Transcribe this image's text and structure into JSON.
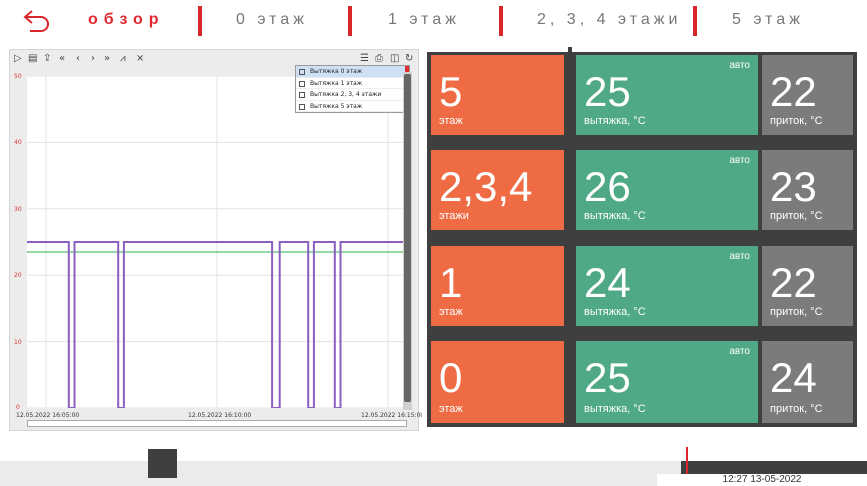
{
  "header": {
    "tabs": [
      {
        "label": "обзор",
        "active": true
      },
      {
        "label": "0 этаж"
      },
      {
        "label": "1 этаж"
      },
      {
        "label": "2, 3, 4 этажи"
      },
      {
        "label": "5 этаж"
      }
    ]
  },
  "chart_toolbar": {
    "icons": [
      "play-icon",
      "table-icon",
      "export-icon",
      "rewind-icon",
      "prev-icon",
      "next-icon",
      "fast-forward-icon",
      "chart-icon",
      "clear-chart-icon",
      "list-icon",
      "print-icon",
      "screenshot-icon",
      "refresh-icon"
    ],
    "glyphs": [
      "▷",
      "▤",
      "⇪",
      "«",
      "‹",
      "›",
      "»",
      "⩘",
      "⨯",
      "☰",
      "⎙",
      "◫",
      "↻"
    ]
  },
  "chart_data": {
    "type": "line",
    "ylim": [
      0,
      50
    ],
    "yticks": [
      "50",
      "40",
      "30",
      "20",
      "10",
      "0"
    ],
    "xticks": [
      "12.05.2022 16:05:00",
      "12.05.2022 16:10:00",
      "12.05.2022 16:15:00"
    ],
    "series": [
      {
        "name": "Вытяжка 0 этаж",
        "color": "#e03030",
        "checked": true
      },
      {
        "name": "Вытяжка 1 этаж",
        "color": "#29b34a",
        "checked": true
      },
      {
        "name": "Вытяжка 2, 3, 4 этажи",
        "color": "#1f3fc8",
        "checked": true
      },
      {
        "name": "Вытяжка 5 этаж",
        "color": "#22d8e0",
        "checked": true
      }
    ],
    "main_value": 25,
    "green_value": 23.5,
    "gaps_t": [
      [
        0.11,
        0.125
      ],
      [
        0.24,
        0.255
      ],
      [
        0.645,
        0.665
      ],
      [
        0.74,
        0.755
      ],
      [
        0.81,
        0.825
      ]
    ]
  },
  "grid": {
    "auto_label": "авто",
    "rows": [
      {
        "zone": "5",
        "zone_caption": "этаж",
        "exhaust": "25",
        "exhaust_caption": "вытяжка, °C",
        "supply": "22",
        "supply_caption": "приток, °C"
      },
      {
        "zone": "2,3,4",
        "zone_caption": "этажи",
        "exhaust": "26",
        "exhaust_caption": "вытяжка, °C",
        "supply": "23",
        "supply_caption": "приток, °C"
      },
      {
        "zone": "1",
        "zone_caption": "этаж",
        "exhaust": "24",
        "exhaust_caption": "вытяжка, °C",
        "supply": "22",
        "supply_caption": "приток, °C"
      },
      {
        "zone": "0",
        "zone_caption": "этаж",
        "exhaust": "25",
        "exhaust_caption": "вытяжка, °C",
        "supply": "24",
        "supply_caption": "приток, °C"
      }
    ]
  },
  "footer": {
    "clock": "12:27 13-05-2022"
  },
  "colors": {
    "accent": "#d9262b",
    "orange": "#ee6b44",
    "green": "#4fa886",
    "gray": "#7d7b7a",
    "dark": "#3f3f3f"
  }
}
